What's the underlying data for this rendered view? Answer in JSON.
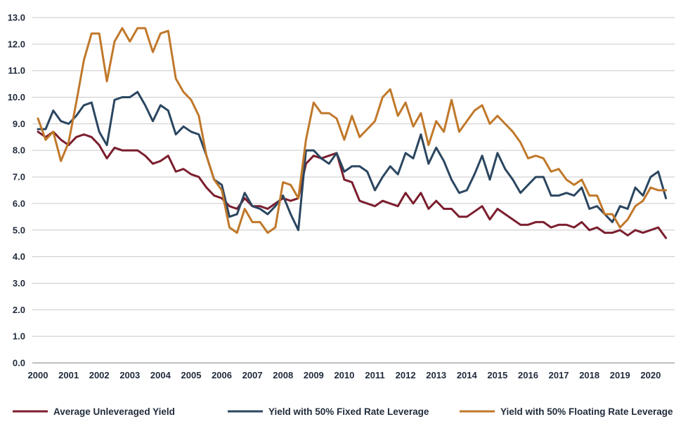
{
  "chart_data": {
    "type": "line",
    "title": "",
    "xlabel": "",
    "ylabel": "",
    "ylim": [
      0,
      13
    ],
    "yticks": [
      "0.0",
      "1.0",
      "2.0",
      "3.0",
      "4.0",
      "5.0",
      "6.0",
      "7.0",
      "8.0",
      "9.0",
      "10.0",
      "11.0",
      "12.0",
      "13.0"
    ],
    "xlim": [
      2000,
      2020.6
    ],
    "xticks": [
      "2000",
      "2001",
      "2002",
      "2003",
      "2004",
      "2005",
      "2006",
      "2007",
      "2008",
      "2009",
      "2010",
      "2011",
      "2012",
      "2013",
      "2014",
      "2015",
      "2016",
      "2017",
      "2018",
      "2019",
      "2020"
    ],
    "grid": "horizontal",
    "legend_position": "bottom",
    "series": [
      {
        "name": "Average Unleveraged Yield",
        "color": "#7b1e2e",
        "points": [
          [
            2000,
            8.7
          ],
          [
            2000.25,
            8.5
          ],
          [
            2000.5,
            8.7
          ],
          [
            2000.75,
            8.4
          ],
          [
            2001,
            8.2
          ],
          [
            2001.25,
            8.5
          ],
          [
            2001.5,
            8.6
          ],
          [
            2001.75,
            8.5
          ],
          [
            2002,
            8.2
          ],
          [
            2002.25,
            7.7
          ],
          [
            2002.5,
            8.1
          ],
          [
            2002.75,
            8.0
          ],
          [
            2003,
            8.0
          ],
          [
            2003.25,
            8.0
          ],
          [
            2003.5,
            7.8
          ],
          [
            2003.75,
            7.5
          ],
          [
            2004,
            7.6
          ],
          [
            2004.25,
            7.8
          ],
          [
            2004.5,
            7.2
          ],
          [
            2004.75,
            7.3
          ],
          [
            2005,
            7.1
          ],
          [
            2005.25,
            7.0
          ],
          [
            2005.5,
            6.6
          ],
          [
            2005.75,
            6.3
          ],
          [
            2006,
            6.2
          ],
          [
            2006.25,
            5.9
          ],
          [
            2006.5,
            5.8
          ],
          [
            2006.75,
            6.2
          ],
          [
            2007,
            5.9
          ],
          [
            2007.25,
            5.9
          ],
          [
            2007.5,
            5.8
          ],
          [
            2007.75,
            6.0
          ],
          [
            2008,
            6.2
          ],
          [
            2008.25,
            6.1
          ],
          [
            2008.5,
            6.2
          ],
          [
            2008.75,
            7.5
          ],
          [
            2009,
            7.8
          ],
          [
            2009.25,
            7.7
          ],
          [
            2009.5,
            7.8
          ],
          [
            2009.75,
            7.9
          ],
          [
            2010,
            6.9
          ],
          [
            2010.25,
            6.8
          ],
          [
            2010.5,
            6.1
          ],
          [
            2010.75,
            6.0
          ],
          [
            2011,
            5.9
          ],
          [
            2011.25,
            6.1
          ],
          [
            2011.5,
            6.0
          ],
          [
            2011.75,
            5.9
          ],
          [
            2012,
            6.4
          ],
          [
            2012.25,
            6.0
          ],
          [
            2012.5,
            6.4
          ],
          [
            2012.75,
            5.8
          ],
          [
            2013,
            6.1
          ],
          [
            2013.25,
            5.8
          ],
          [
            2013.5,
            5.8
          ],
          [
            2013.75,
            5.5
          ],
          [
            2014,
            5.5
          ],
          [
            2014.25,
            5.7
          ],
          [
            2014.5,
            5.9
          ],
          [
            2014.75,
            5.4
          ],
          [
            2015,
            5.8
          ],
          [
            2015.25,
            5.6
          ],
          [
            2015.5,
            5.4
          ],
          [
            2015.75,
            5.2
          ],
          [
            2016,
            5.2
          ],
          [
            2016.25,
            5.3
          ],
          [
            2016.5,
            5.3
          ],
          [
            2016.75,
            5.1
          ],
          [
            2017,
            5.2
          ],
          [
            2017.25,
            5.2
          ],
          [
            2017.5,
            5.1
          ],
          [
            2017.75,
            5.3
          ],
          [
            2018,
            5.0
          ],
          [
            2018.25,
            5.1
          ],
          [
            2018.5,
            4.9
          ],
          [
            2018.75,
            4.9
          ],
          [
            2019,
            5.0
          ],
          [
            2019.25,
            4.8
          ],
          [
            2019.5,
            5.0
          ],
          [
            2019.75,
            4.9
          ],
          [
            2020,
            5.0
          ],
          [
            2020.25,
            5.1
          ],
          [
            2020.5,
            4.7
          ]
        ]
      },
      {
        "name": "Yield with 50% Fixed Rate Leverage",
        "color": "#2b4660",
        "points": [
          [
            2000,
            8.8
          ],
          [
            2000.25,
            8.8
          ],
          [
            2000.5,
            9.5
          ],
          [
            2000.75,
            9.1
          ],
          [
            2001,
            9.0
          ],
          [
            2001.25,
            9.3
          ],
          [
            2001.5,
            9.7
          ],
          [
            2001.75,
            9.8
          ],
          [
            2002,
            8.7
          ],
          [
            2002.25,
            8.2
          ],
          [
            2002.5,
            9.9
          ],
          [
            2002.75,
            10.0
          ],
          [
            2003,
            10.0
          ],
          [
            2003.25,
            10.2
          ],
          [
            2003.5,
            9.7
          ],
          [
            2003.75,
            9.1
          ],
          [
            2004,
            9.7
          ],
          [
            2004.25,
            9.5
          ],
          [
            2004.5,
            8.6
          ],
          [
            2004.75,
            8.9
          ],
          [
            2005,
            8.7
          ],
          [
            2005.25,
            8.6
          ],
          [
            2005.5,
            7.8
          ],
          [
            2005.75,
            6.9
          ],
          [
            2006,
            6.7
          ],
          [
            2006.25,
            5.5
          ],
          [
            2006.5,
            5.6
          ],
          [
            2006.75,
            6.4
          ],
          [
            2007,
            5.9
          ],
          [
            2007.25,
            5.8
          ],
          [
            2007.5,
            5.6
          ],
          [
            2007.75,
            5.9
          ],
          [
            2008,
            6.3
          ],
          [
            2008.25,
            5.6
          ],
          [
            2008.5,
            5.0
          ],
          [
            2008.75,
            8.0
          ],
          [
            2009,
            8.0
          ],
          [
            2009.25,
            7.7
          ],
          [
            2009.5,
            7.5
          ],
          [
            2009.75,
            7.9
          ],
          [
            2010,
            7.2
          ],
          [
            2010.25,
            7.4
          ],
          [
            2010.5,
            7.4
          ],
          [
            2010.75,
            7.2
          ],
          [
            2011,
            6.5
          ],
          [
            2011.25,
            7.0
          ],
          [
            2011.5,
            7.4
          ],
          [
            2011.75,
            7.1
          ],
          [
            2012,
            7.9
          ],
          [
            2012.25,
            7.7
          ],
          [
            2012.5,
            8.6
          ],
          [
            2012.75,
            7.5
          ],
          [
            2013,
            8.1
          ],
          [
            2013.25,
            7.6
          ],
          [
            2013.5,
            6.9
          ],
          [
            2013.75,
            6.4
          ],
          [
            2014,
            6.5
          ],
          [
            2014.25,
            7.1
          ],
          [
            2014.5,
            7.8
          ],
          [
            2014.75,
            6.9
          ],
          [
            2015,
            7.9
          ],
          [
            2015.25,
            7.3
          ],
          [
            2015.5,
            6.9
          ],
          [
            2015.75,
            6.4
          ],
          [
            2016,
            6.7
          ],
          [
            2016.25,
            7.0
          ],
          [
            2016.5,
            7.0
          ],
          [
            2016.75,
            6.3
          ],
          [
            2017,
            6.3
          ],
          [
            2017.25,
            6.4
          ],
          [
            2017.5,
            6.3
          ],
          [
            2017.75,
            6.6
          ],
          [
            2018,
            5.8
          ],
          [
            2018.25,
            5.9
          ],
          [
            2018.5,
            5.6
          ],
          [
            2018.75,
            5.3
          ],
          [
            2019,
            5.9
          ],
          [
            2019.25,
            5.8
          ],
          [
            2019.5,
            6.6
          ],
          [
            2019.75,
            6.3
          ],
          [
            2020,
            7.0
          ],
          [
            2020.25,
            7.2
          ],
          [
            2020.5,
            6.2
          ]
        ]
      },
      {
        "name": "Yield with 50% Floating Rate Leverage",
        "color": "#c0782a",
        "points": [
          [
            2000,
            9.2
          ],
          [
            2000.25,
            8.4
          ],
          [
            2000.5,
            8.7
          ],
          [
            2000.75,
            7.6
          ],
          [
            2001,
            8.3
          ],
          [
            2001.25,
            9.8
          ],
          [
            2001.5,
            11.4
          ],
          [
            2001.75,
            12.4
          ],
          [
            2002,
            12.4
          ],
          [
            2002.25,
            10.6
          ],
          [
            2002.5,
            12.1
          ],
          [
            2002.75,
            12.6
          ],
          [
            2003,
            12.1
          ],
          [
            2003.25,
            12.6
          ],
          [
            2003.5,
            12.6
          ],
          [
            2003.75,
            11.7
          ],
          [
            2004,
            12.4
          ],
          [
            2004.25,
            12.5
          ],
          [
            2004.5,
            10.7
          ],
          [
            2004.75,
            10.2
          ],
          [
            2005,
            9.9
          ],
          [
            2005.25,
            9.3
          ],
          [
            2005.5,
            7.8
          ],
          [
            2005.75,
            6.9
          ],
          [
            2006,
            6.5
          ],
          [
            2006.25,
            5.1
          ],
          [
            2006.5,
            4.9
          ],
          [
            2006.75,
            5.8
          ],
          [
            2007,
            5.3
          ],
          [
            2007.25,
            5.3
          ],
          [
            2007.5,
            4.9
          ],
          [
            2007.75,
            5.1
          ],
          [
            2008,
            6.8
          ],
          [
            2008.25,
            6.7
          ],
          [
            2008.5,
            6.2
          ],
          [
            2008.75,
            8.4
          ],
          [
            2009,
            9.8
          ],
          [
            2009.25,
            9.4
          ],
          [
            2009.5,
            9.4
          ],
          [
            2009.75,
            9.2
          ],
          [
            2010,
            8.4
          ],
          [
            2010.25,
            9.3
          ],
          [
            2010.5,
            8.5
          ],
          [
            2010.75,
            8.8
          ],
          [
            2011,
            9.1
          ],
          [
            2011.25,
            10.0
          ],
          [
            2011.5,
            10.3
          ],
          [
            2011.75,
            9.3
          ],
          [
            2012,
            9.8
          ],
          [
            2012.25,
            8.9
          ],
          [
            2012.5,
            9.4
          ],
          [
            2012.75,
            8.2
          ],
          [
            2013,
            9.1
          ],
          [
            2013.25,
            8.7
          ],
          [
            2013.5,
            9.9
          ],
          [
            2013.75,
            8.7
          ],
          [
            2014,
            9.1
          ],
          [
            2014.25,
            9.5
          ],
          [
            2014.5,
            9.7
          ],
          [
            2014.75,
            9.0
          ],
          [
            2015,
            9.3
          ],
          [
            2015.25,
            9.0
          ],
          [
            2015.5,
            8.7
          ],
          [
            2015.75,
            8.3
          ],
          [
            2016,
            7.7
          ],
          [
            2016.25,
            7.8
          ],
          [
            2016.5,
            7.7
          ],
          [
            2016.75,
            7.2
          ],
          [
            2017,
            7.3
          ],
          [
            2017.25,
            6.9
          ],
          [
            2017.5,
            6.7
          ],
          [
            2017.75,
            6.9
          ],
          [
            2018,
            6.3
          ],
          [
            2018.25,
            6.3
          ],
          [
            2018.5,
            5.6
          ],
          [
            2018.75,
            5.6
          ],
          [
            2019,
            5.1
          ],
          [
            2019.25,
            5.4
          ],
          [
            2019.5,
            5.9
          ],
          [
            2019.75,
            6.1
          ],
          [
            2020,
            6.6
          ],
          [
            2020.25,
            6.5
          ],
          [
            2020.5,
            6.5
          ]
        ]
      }
    ]
  }
}
